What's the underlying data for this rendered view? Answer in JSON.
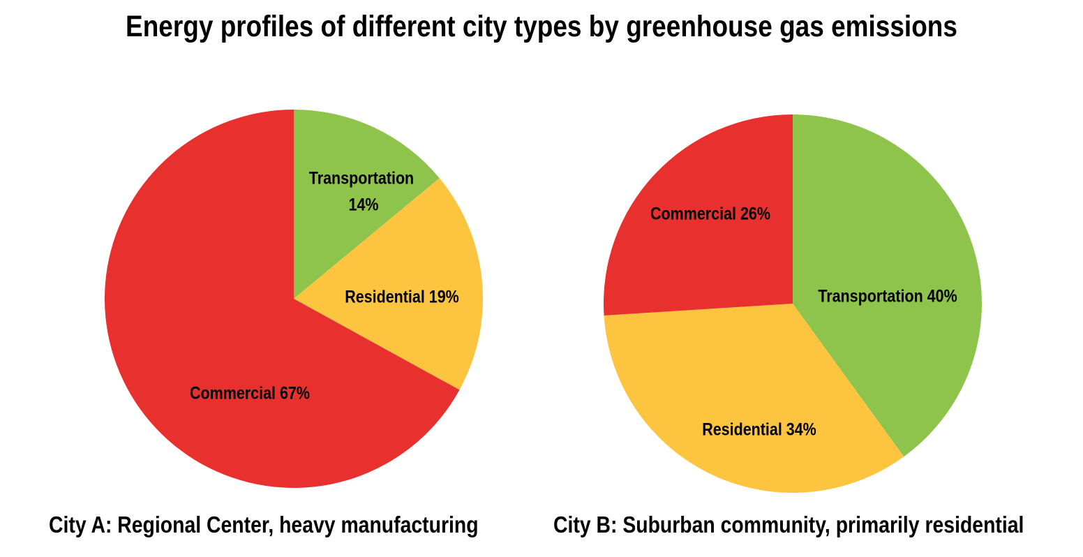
{
  "title": "Energy profiles of different city types by greenhouse gas emissions",
  "colors": {
    "Transportation": "#8ec44c",
    "Residential": "#fdc43f",
    "Commercial": "#e8302f"
  },
  "chart_data": [
    {
      "type": "pie",
      "caption": "City A: Regional Center, heavy manufacturing",
      "slices": [
        {
          "name": "Transportation",
          "value": 14,
          "label_lines": [
            "Transportation",
            "14%"
          ]
        },
        {
          "name": "Residential",
          "value": 19,
          "label_lines": [
            "Residential 19%"
          ]
        },
        {
          "name": "Commercial",
          "value": 67,
          "label_lines": [
            "Commercial 67%"
          ]
        }
      ]
    },
    {
      "type": "pie",
      "caption": "City B: Suburban community, primarily residential",
      "slices": [
        {
          "name": "Transportation",
          "value": 40,
          "label_lines": [
            "Transportation 40%"
          ]
        },
        {
          "name": "Residential",
          "value": 34,
          "label_lines": [
            "Residential 34%"
          ]
        },
        {
          "name": "Commercial",
          "value": 26,
          "label_lines": [
            "Commercial 26%"
          ]
        }
      ]
    }
  ]
}
